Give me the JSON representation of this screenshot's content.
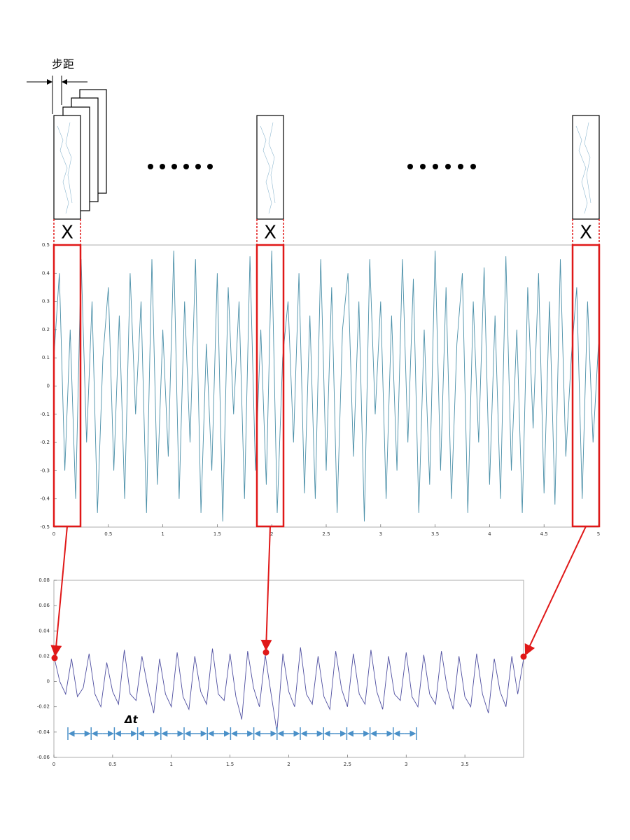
{
  "step_label": "步距",
  "window_labels": [
    "X",
    "X",
    "X"
  ],
  "delta_label": "Δt",
  "chart_data": [
    {
      "type": "line",
      "color": "#4a8fa8",
      "xlim": [
        0,
        5
      ],
      "ylim": [
        -0.5,
        0.5
      ],
      "xticks": [
        0,
        0.5,
        1,
        1.5,
        2,
        2.5,
        3,
        3.5,
        4,
        4.5,
        5
      ],
      "yticks": [
        -0.5,
        -0.4,
        -0.3,
        -0.2,
        -0.1,
        0,
        0.1,
        0.2,
        0.3,
        0.4,
        0.5
      ],
      "x": [
        0,
        0.05,
        0.1,
        0.15,
        0.2,
        0.25,
        0.3,
        0.35,
        0.4,
        0.45,
        0.5,
        0.55,
        0.6,
        0.65,
        0.7,
        0.75,
        0.8,
        0.85,
        0.9,
        0.95,
        1,
        1.05,
        1.1,
        1.15,
        1.2,
        1.25,
        1.3,
        1.35,
        1.4,
        1.45,
        1.5,
        1.55,
        1.6,
        1.65,
        1.7,
        1.75,
        1.8,
        1.85,
        1.9,
        1.95,
        2,
        2.05,
        2.1,
        2.15,
        2.2,
        2.25,
        2.3,
        2.35,
        2.4,
        2.45,
        2.5,
        2.55,
        2.6,
        2.65,
        2.7,
        2.75,
        2.8,
        2.85,
        2.9,
        2.95,
        3,
        3.05,
        3.1,
        3.15,
        3.2,
        3.25,
        3.3,
        3.35,
        3.4,
        3.45,
        3.5,
        3.55,
        3.6,
        3.65,
        3.7,
        3.75,
        3.8,
        3.85,
        3.9,
        3.95,
        4,
        4.05,
        4.1,
        4.15,
        4.2,
        4.25,
        4.3,
        4.35,
        4.4,
        4.45,
        4.5,
        4.55,
        4.6,
        4.65,
        4.7,
        4.75,
        4.8,
        4.85,
        4.9,
        4.95,
        5
      ],
      "values": [
        0.1,
        0.4,
        -0.3,
        0.2,
        -0.4,
        0.45,
        -0.2,
        0.3,
        -0.45,
        0.1,
        0.35,
        -0.3,
        0.25,
        -0.4,
        0.4,
        -0.1,
        0.3,
        -0.45,
        0.45,
        -0.35,
        0.2,
        -0.25,
        0.48,
        -0.4,
        0.3,
        -0.2,
        0.45,
        -0.45,
        0.15,
        -0.3,
        0.4,
        -0.48,
        0.35,
        -0.1,
        0.3,
        -0.4,
        0.46,
        -0.3,
        0.2,
        -0.35,
        0.48,
        -0.45,
        0.1,
        0.3,
        -0.2,
        0.4,
        -0.38,
        0.25,
        -0.4,
        0.45,
        -0.3,
        0.35,
        -0.45,
        0.2,
        0.4,
        -0.25,
        0.3,
        -0.48,
        0.45,
        -0.1,
        0.3,
        -0.4,
        0.25,
        -0.3,
        0.45,
        -0.2,
        0.38,
        -0.45,
        0.2,
        -0.35,
        0.48,
        -0.3,
        0.35,
        -0.4,
        0.15,
        0.4,
        -0.45,
        0.3,
        -0.2,
        0.42,
        -0.35,
        0.25,
        -0.4,
        0.46,
        -0.3,
        0.2,
        -0.45,
        0.35,
        -0.15,
        0.4,
        -0.38,
        0.3,
        -0.42,
        0.45,
        -0.25,
        0.1,
        0.35,
        -0.4,
        0.3,
        -0.2,
        0.15
      ]
    },
    {
      "type": "line",
      "color": "#4f4fa0",
      "xlim": [
        0,
        4
      ],
      "ylim": [
        -0.06,
        0.08
      ],
      "xticks": [
        0,
        0.5,
        1,
        1.5,
        2,
        2.5,
        3,
        3.5
      ],
      "yticks": [
        -0.06,
        -0.04,
        -0.02,
        0,
        0.02,
        0.04,
        0.06,
        0.08
      ],
      "x": [
        0,
        0.05,
        0.1,
        0.15,
        0.2,
        0.25,
        0.3,
        0.35,
        0.4,
        0.45,
        0.5,
        0.55,
        0.6,
        0.65,
        0.7,
        0.75,
        0.8,
        0.85,
        0.9,
        0.95,
        1,
        1.05,
        1.1,
        1.15,
        1.2,
        1.25,
        1.3,
        1.35,
        1.4,
        1.45,
        1.5,
        1.55,
        1.6,
        1.65,
        1.7,
        1.75,
        1.8,
        1.85,
        1.9,
        1.95,
        2,
        2.05,
        2.1,
        2.15,
        2.2,
        2.25,
        2.3,
        2.35,
        2.4,
        2.45,
        2.5,
        2.55,
        2.6,
        2.65,
        2.7,
        2.75,
        2.8,
        2.85,
        2.9,
        2.95,
        3,
        3.05,
        3.1,
        3.15,
        3.2,
        3.25,
        3.3,
        3.35,
        3.4,
        3.45,
        3.5,
        3.55,
        3.6,
        3.65,
        3.7,
        3.75,
        3.8,
        3.85,
        3.9,
        3.95,
        4
      ],
      "values": [
        0.02,
        0.0,
        -0.01,
        0.018,
        -0.012,
        -0.005,
        0.022,
        -0.01,
        -0.02,
        0.015,
        -0.008,
        -0.018,
        0.025,
        -0.01,
        -0.015,
        0.02,
        -0.005,
        -0.025,
        0.018,
        -0.01,
        -0.02,
        0.023,
        -0.012,
        -0.022,
        0.02,
        -0.008,
        -0.018,
        0.026,
        -0.01,
        -0.015,
        0.022,
        -0.012,
        -0.03,
        0.024,
        -0.005,
        -0.02,
        0.021,
        -0.01,
        -0.04,
        0.022,
        -0.008,
        -0.02,
        0.027,
        -0.01,
        -0.018,
        0.02,
        -0.012,
        -0.022,
        0.024,
        -0.006,
        -0.02,
        0.022,
        -0.01,
        -0.018,
        0.025,
        -0.008,
        -0.022,
        0.02,
        -0.01,
        -0.015,
        0.023,
        -0.012,
        -0.02,
        0.021,
        -0.01,
        -0.018,
        0.024,
        -0.006,
        -0.022,
        0.02,
        -0.012,
        -0.02,
        0.022,
        -0.01,
        -0.025,
        0.018,
        -0.008,
        -0.02,
        0.02,
        -0.01,
        0.018
      ]
    }
  ]
}
